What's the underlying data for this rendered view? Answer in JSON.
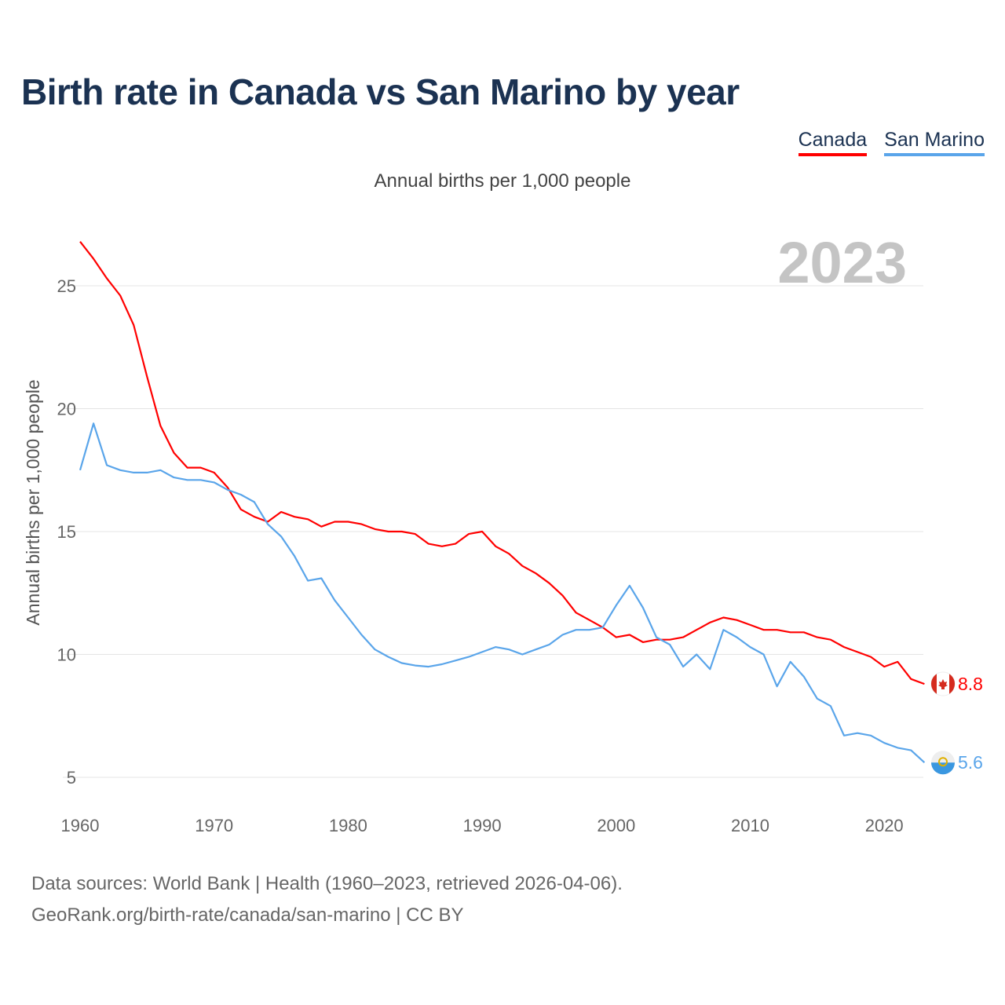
{
  "title": "Birth rate in Canada vs San Marino by year",
  "legend": [
    "Canada",
    "San Marino"
  ],
  "subtitle": "Annual births per 1,000 people",
  "year_label": "2023",
  "source_line1": "Data sources: World Bank | Health (1960–2023, retrieved 2026-04-06).",
  "source_line2": "GeoRank.org/birth-rate/canada/san-marino | CC BY",
  "chart_data": {
    "type": "line",
    "title": "Birth rate in Canada vs San Marino by year",
    "xlabel": "",
    "ylabel": "Annual births per 1,000 people",
    "xlim": [
      1960,
      2023
    ],
    "ylim": [
      5,
      27
    ],
    "xticks": [
      1960,
      1970,
      1980,
      1990,
      2000,
      2010,
      2020
    ],
    "yticks": [
      5,
      10,
      15,
      20,
      25
    ],
    "grid": true,
    "legend_position": "top-right",
    "x_start": 1960,
    "series": [
      {
        "name": "Canada",
        "color": "#ff0000",
        "end_label": "8.8",
        "values": [
          26.8,
          26.1,
          25.3,
          24.6,
          23.4,
          21.3,
          19.3,
          18.2,
          17.6,
          17.6,
          17.4,
          16.8,
          15.9,
          15.6,
          15.4,
          15.8,
          15.6,
          15.5,
          15.2,
          15.4,
          15.4,
          15.3,
          15.1,
          15.0,
          15.0,
          14.9,
          14.5,
          14.4,
          14.5,
          14.9,
          15.0,
          14.4,
          14.1,
          13.6,
          13.3,
          12.9,
          12.4,
          11.7,
          11.4,
          11.1,
          10.7,
          10.8,
          10.5,
          10.6,
          10.6,
          10.7,
          11.0,
          11.3,
          11.5,
          11.4,
          11.2,
          11.0,
          11.0,
          10.9,
          10.9,
          10.7,
          10.6,
          10.3,
          10.1,
          9.9,
          9.5,
          9.7,
          9.0,
          8.8
        ]
      },
      {
        "name": "San Marino",
        "color": "#5aa5ea",
        "end_label": "5.6",
        "values": [
          17.5,
          19.4,
          17.7,
          17.5,
          17.4,
          17.4,
          17.5,
          17.2,
          17.1,
          17.1,
          17.0,
          16.7,
          16.5,
          16.2,
          15.3,
          14.8,
          14.0,
          13.0,
          13.1,
          12.2,
          11.5,
          10.8,
          10.2,
          9.9,
          9.65,
          9.55,
          9.5,
          9.6,
          9.75,
          9.9,
          10.1,
          10.3,
          10.2,
          10.0,
          10.2,
          10.4,
          10.8,
          11.0,
          11.0,
          11.1,
          12.0,
          12.8,
          11.9,
          10.7,
          10.4,
          9.5,
          10.0,
          9.4,
          11.0,
          10.7,
          10.3,
          10.0,
          8.7,
          9.7,
          9.1,
          8.2,
          7.9,
          6.7,
          6.8,
          6.7,
          6.4,
          6.2,
          6.1,
          5.6
        ]
      }
    ]
  }
}
